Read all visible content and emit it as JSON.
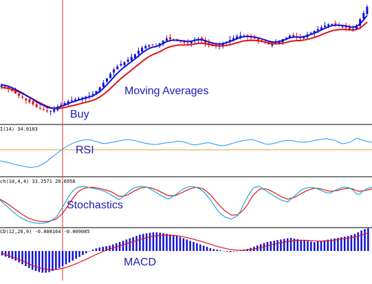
{
  "colors": {
    "bull": "#1010d8",
    "bear": "#e01010",
    "ma_fast": "#1010d8",
    "ma_slow": "#e01010",
    "rsi_line": "#1e90ff",
    "rsi_level": "#d9a036",
    "stoch_main": "#1ea7d0",
    "stoch_signal": "#e01010",
    "macd_bar": "#1010d8",
    "macd_signal": "#e01010",
    "separator": "#808080",
    "marker_line": "#e03030"
  },
  "annotations": {
    "buy": "Buy",
    "moving_averages": "Moving Averages",
    "rsi": "RSI",
    "stochastics": "Stochastics",
    "macd": "MACD"
  },
  "panels": {
    "rsi_info": "I(14) 34.0103",
    "stoch_info": "ch(10,4,4) 33.2571 20.6958",
    "macd_info": "CD(12,26,9) -0.008164 -0.009085"
  },
  "chart_data": [
    {
      "type": "candlestick",
      "title": "",
      "series": [
        {
          "name": "",
          "values": [
            0.42,
            0.4,
            0.38,
            0.35,
            0.33,
            0.3,
            0.28,
            0.25,
            0.24,
            0.22,
            0.23,
            0.26,
            0.28,
            0.3,
            0.31,
            0.32,
            0.33,
            0.34,
            0.36,
            0.4,
            0.45,
            0.5,
            0.55,
            0.58,
            0.6,
            0.63,
            0.66,
            0.7,
            0.72,
            0.73,
            0.72,
            0.75,
            0.78,
            0.77,
            0.76,
            0.75,
            0.74,
            0.76,
            0.78,
            0.76,
            0.73,
            0.72,
            0.72,
            0.74,
            0.76,
            0.78,
            0.8,
            0.8,
            0.79,
            0.78,
            0.76,
            0.75,
            0.73,
            0.74,
            0.76,
            0.78,
            0.8,
            0.79,
            0.78,
            0.8,
            0.82,
            0.84,
            0.86,
            0.88,
            0.89,
            0.88,
            0.87,
            0.86,
            0.84,
            0.88,
            0.95,
            1.02
          ]
        }
      ],
      "moving_averages": [
        "fast",
        "slow"
      ]
    },
    {
      "type": "line",
      "title": "RSI",
      "ylim": [
        0,
        100
      ],
      "level": 50,
      "series": [
        {
          "name": "",
          "values": [
            35,
            33,
            30,
            28,
            26,
            27,
            32,
            40,
            48,
            55,
            60,
            63,
            64,
            61,
            58,
            60,
            62,
            64,
            63,
            60,
            58,
            57,
            59,
            60,
            62,
            60,
            56,
            58,
            60,
            57,
            55,
            58,
            61,
            63,
            64,
            60,
            57,
            59,
            62,
            63,
            61,
            60,
            62,
            64,
            65,
            63,
            58,
            60,
            66,
            62,
            60
          ]
        }
      ]
    },
    {
      "type": "line",
      "title": "Stochastics",
      "ylim": [
        0,
        100
      ],
      "series": [
        {
          "name": "",
          "values": [
            60,
            45,
            30,
            18,
            10,
            6,
            5,
            8,
            20,
            45,
            75,
            90,
            92,
            88,
            85,
            80,
            70,
            60,
            75,
            88,
            92,
            90,
            80,
            70,
            62,
            72,
            85,
            92,
            90,
            80,
            60,
            35,
            20,
            15,
            25,
            60,
            88,
            92,
            80,
            70,
            60,
            55,
            70,
            85,
            90,
            88,
            80,
            75,
            85,
            90,
            88,
            70,
            85,
            90
          ]
        },
        {
          "name": "",
          "values": [
            62,
            52,
            40,
            28,
            18,
            12,
            9,
            10,
            15,
            30,
            55,
            78,
            88,
            90,
            88,
            84,
            78,
            68,
            70,
            80,
            88,
            90,
            86,
            78,
            70,
            70,
            78,
            86,
            90,
            86,
            72,
            52,
            35,
            24,
            26,
            42,
            70,
            86,
            86,
            78,
            68,
            62,
            66,
            76,
            84,
            88,
            85,
            80,
            82,
            86,
            88,
            80,
            82,
            86
          ]
        }
      ]
    },
    {
      "type": "bar",
      "title": "MACD",
      "series": [
        {
          "name": "",
          "values": [
            -0.2,
            -0.3,
            -0.4,
            -0.55,
            -0.7,
            -0.85,
            -0.95,
            -1.0,
            -0.95,
            -0.85,
            -0.7,
            -0.55,
            -0.4,
            -0.25,
            -0.1,
            0.05,
            0.15,
            0.2,
            0.25,
            0.35,
            0.45,
            0.55,
            0.65,
            0.75,
            0.8,
            0.85,
            0.85,
            0.8,
            0.75,
            0.7,
            0.6,
            0.5,
            0.4,
            0.3,
            0.2,
            0.1,
            0.05,
            0.0,
            -0.05,
            0.0,
            0.05,
            0.1,
            0.2,
            0.3,
            0.4,
            0.45,
            0.5,
            0.55,
            0.6,
            0.55,
            0.5,
            0.45,
            0.4,
            0.45,
            0.5,
            0.55,
            0.6,
            0.65,
            0.7,
            0.8,
            0.95,
            1.05
          ]
        },
        {
          "name": "",
          "values": [
            -0.1,
            -0.2,
            -0.3,
            -0.4,
            -0.52,
            -0.65,
            -0.75,
            -0.82,
            -0.85,
            -0.84,
            -0.8,
            -0.72,
            -0.62,
            -0.5,
            -0.38,
            -0.25,
            -0.12,
            0.0,
            0.1,
            0.18,
            0.26,
            0.35,
            0.44,
            0.52,
            0.6,
            0.66,
            0.7,
            0.72,
            0.72,
            0.7,
            0.66,
            0.6,
            0.53,
            0.45,
            0.37,
            0.28,
            0.2,
            0.13,
            0.07,
            0.04,
            0.03,
            0.05,
            0.09,
            0.15,
            0.22,
            0.29,
            0.35,
            0.4,
            0.45,
            0.48,
            0.49,
            0.48,
            0.46,
            0.45,
            0.46,
            0.48,
            0.52,
            0.56,
            0.6,
            0.65,
            0.72,
            0.82
          ]
        }
      ]
    }
  ]
}
